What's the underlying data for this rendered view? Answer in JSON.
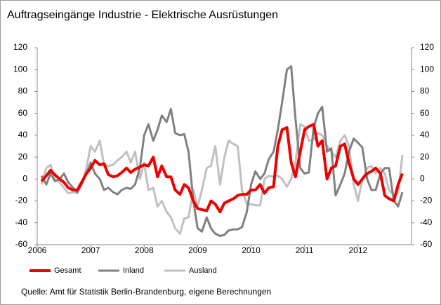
{
  "chart_data": {
    "type": "line",
    "title": "Auftragseingänge Industrie - Elektrische Ausrüstungen",
    "note": "Quelle: Amt für Statistik Berlin-Brandenburg, eigene Berechnungen",
    "x": [
      2006.08,
      2006.17,
      2006.25,
      2006.33,
      2006.42,
      2006.5,
      2006.58,
      2006.67,
      2006.75,
      2006.83,
      2006.92,
      2007,
      2007.08,
      2007.17,
      2007.25,
      2007.33,
      2007.42,
      2007.5,
      2007.58,
      2007.67,
      2007.75,
      2007.83,
      2007.92,
      2008,
      2008.08,
      2008.17,
      2008.25,
      2008.33,
      2008.42,
      2008.5,
      2008.58,
      2008.67,
      2008.75,
      2008.83,
      2008.92,
      2009,
      2009.08,
      2009.17,
      2009.25,
      2009.33,
      2009.42,
      2009.5,
      2009.58,
      2009.67,
      2009.75,
      2009.83,
      2009.92,
      2010,
      2010.08,
      2010.17,
      2010.25,
      2010.33,
      2010.42,
      2010.5,
      2010.58,
      2010.67,
      2010.75,
      2010.83,
      2010.92,
      2011,
      2011.08,
      2011.17,
      2011.25,
      2011.33,
      2011.42,
      2011.5,
      2011.58,
      2011.67,
      2011.75,
      2011.83,
      2011.92,
      2012,
      2012.08,
      2012.17,
      2012.25,
      2012.33,
      2012.42,
      2012.5,
      2012.58,
      2012.67,
      2012.75,
      2012.83
    ],
    "series": [
      {
        "name": "Gesamt",
        "color": "#ee0000",
        "width": 4,
        "values": [
          -2,
          3,
          8,
          4,
          0,
          -3,
          -8,
          -10,
          -10,
          -3,
          5,
          10,
          17,
          13,
          14,
          4,
          2,
          3,
          6,
          10,
          6,
          9,
          11,
          13,
          12,
          20,
          2,
          12,
          2,
          2,
          -10,
          -14,
          -5,
          -8,
          -20,
          -27,
          -28,
          -29,
          -20,
          -23,
          -30,
          -22,
          -20,
          -18,
          -15,
          -14,
          -14,
          -10,
          -10,
          -5,
          -13,
          -8,
          -7,
          30,
          45,
          47,
          15,
          2,
          25,
          45,
          48,
          50,
          30,
          35,
          0,
          10,
          12,
          30,
          32,
          15,
          0,
          -5,
          0,
          5,
          7,
          10,
          5,
          -15,
          -18,
          -20,
          -5,
          5
        ]
      },
      {
        "name": "Inland",
        "color": "#808080",
        "width": 3,
        "values": [
          3,
          -5,
          5,
          -2,
          0,
          5,
          -3,
          -8,
          -12,
          -5,
          5,
          15,
          5,
          0,
          -10,
          -8,
          -12,
          -14,
          -10,
          -8,
          -9,
          -5,
          10,
          40,
          50,
          35,
          45,
          58,
          52,
          64,
          42,
          40,
          41,
          25,
          -20,
          -45,
          -48,
          -35,
          -45,
          -50,
          -52,
          -51,
          -47,
          -46,
          -46,
          -44,
          -30,
          -5,
          7,
          0,
          5,
          18,
          25,
          45,
          70,
          100,
          103,
          55,
          10,
          5,
          6,
          47,
          60,
          66,
          25,
          28,
          -15,
          -5,
          5,
          25,
          37,
          33,
          29,
          0,
          -10,
          -10,
          5,
          10,
          10,
          -20,
          -25,
          -12
        ]
      },
      {
        "name": "Ausland",
        "color": "#c0c0c0",
        "width": 3,
        "values": [
          -5,
          10,
          13,
          0,
          -3,
          -8,
          -13,
          -12,
          -13,
          -5,
          10,
          30,
          25,
          35,
          13,
          12,
          13,
          17,
          20,
          25,
          15,
          25,
          0,
          15,
          -10,
          -8,
          -25,
          -20,
          -30,
          -35,
          -45,
          -50,
          -36,
          -35,
          -10,
          -25,
          -10,
          10,
          12,
          30,
          -5,
          20,
          35,
          32,
          30,
          -10,
          -23,
          -23,
          -24,
          -24,
          0,
          3,
          2,
          3,
          0,
          -7,
          0,
          15,
          50,
          48,
          35,
          36,
          42,
          40,
          30,
          25,
          20,
          35,
          40,
          30,
          -5,
          -20,
          0,
          10,
          12,
          5,
          10,
          5,
          -10,
          -15,
          -12,
          22
        ]
      }
    ],
    "xlim": [
      2006,
      2013
    ],
    "xticks": [
      2006,
      2007,
      2008,
      2009,
      2010,
      2011,
      2012
    ],
    "ylim": [
      -60,
      120
    ],
    "yticks": [
      -60,
      -40,
      -20,
      0,
      20,
      40,
      60,
      80,
      100,
      120
    ],
    "y2lim": [
      -60,
      120
    ],
    "y2ticks": [
      -60,
      -40,
      -20,
      0,
      20,
      40,
      60,
      80,
      100,
      120
    ],
    "legend": "bottom"
  }
}
